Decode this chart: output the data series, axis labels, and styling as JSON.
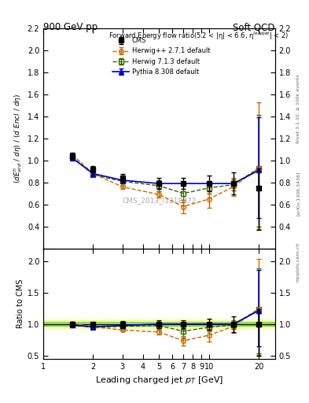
{
  "title_left": "900 GeV pp",
  "title_right": "Soft QCD",
  "xlabel": "Leading charged jet p_{T} [GeV]",
  "ylabel_main": "(dE$^h$ard / dη) / (d Encl / dη)",
  "ylabel_ratio": "Ratio to CMS",
  "annotation": "Forward Energy flow ratio(5.2 < |η| < 6.6, η$^{leadjet}$| < 2)",
  "watermark": "CMS_2013_I1218372",
  "rivet_label": "Rivet 3.1.10, ≥ 100k events",
  "arxiv_label": "[arXiv:1306.3436]",
  "mcplots_label": "mcplots.cern.ch",
  "x_cms": [
    1.5,
    2.0,
    3.0,
    5.0,
    7.0,
    10.0,
    14.0,
    20.0
  ],
  "y_cms": [
    1.04,
    0.92,
    0.84,
    0.79,
    0.79,
    0.79,
    0.79,
    0.75
  ],
  "yerr_cms_lo": [
    0.03,
    0.03,
    0.04,
    0.05,
    0.05,
    0.07,
    0.1,
    0.38
  ],
  "yerr_cms_hi": [
    0.03,
    0.03,
    0.04,
    0.05,
    0.05,
    0.07,
    0.1,
    0.18
  ],
  "x_herwig271": [
    1.5,
    2.0,
    3.0,
    5.0,
    7.0,
    10.0,
    14.0,
    20.0
  ],
  "y_herwig271": [
    1.05,
    0.88,
    0.76,
    0.69,
    0.58,
    0.65,
    0.76,
    0.93
  ],
  "yerr_herwig271_lo": [
    0.01,
    0.01,
    0.02,
    0.03,
    0.06,
    0.08,
    0.08,
    0.55
  ],
  "yerr_herwig271_hi": [
    0.01,
    0.01,
    0.02,
    0.03,
    0.06,
    0.08,
    0.08,
    0.6
  ],
  "x_herwig713": [
    1.5,
    2.0,
    3.0,
    5.0,
    7.0,
    10.0,
    14.0,
    20.0
  ],
  "y_herwig713": [
    1.03,
    0.87,
    0.81,
    0.77,
    0.7,
    0.75,
    0.78,
    0.93
  ],
  "yerr_herwig713_lo": [
    0.01,
    0.01,
    0.02,
    0.05,
    0.08,
    0.05,
    0.05,
    0.53
  ],
  "yerr_herwig713_hi": [
    0.01,
    0.01,
    0.02,
    0.05,
    0.08,
    0.05,
    0.05,
    0.48
  ],
  "x_pythia": [
    1.5,
    2.0,
    3.0,
    5.0,
    7.0,
    10.0,
    14.0,
    20.0
  ],
  "y_pythia": [
    1.02,
    0.88,
    0.82,
    0.79,
    0.79,
    0.79,
    0.79,
    0.91
  ],
  "yerr_pythia_lo": [
    0.01,
    0.01,
    0.01,
    0.01,
    0.01,
    0.01,
    0.01,
    0.43
  ],
  "yerr_pythia_hi": [
    0.01,
    0.01,
    0.01,
    0.01,
    0.01,
    0.01,
    0.01,
    0.48
  ],
  "cms_color": "#000000",
  "herwig271_color": "#cc6600",
  "herwig713_color": "#336600",
  "pythia_color": "#0000cc",
  "band_green": [
    0.97,
    1.03
  ],
  "band_yellow": [
    0.93,
    1.07
  ],
  "ylim_main": [
    0.2,
    2.2
  ],
  "ylim_ratio": [
    0.45,
    2.2
  ],
  "xlim": [
    1.0,
    25.0
  ]
}
